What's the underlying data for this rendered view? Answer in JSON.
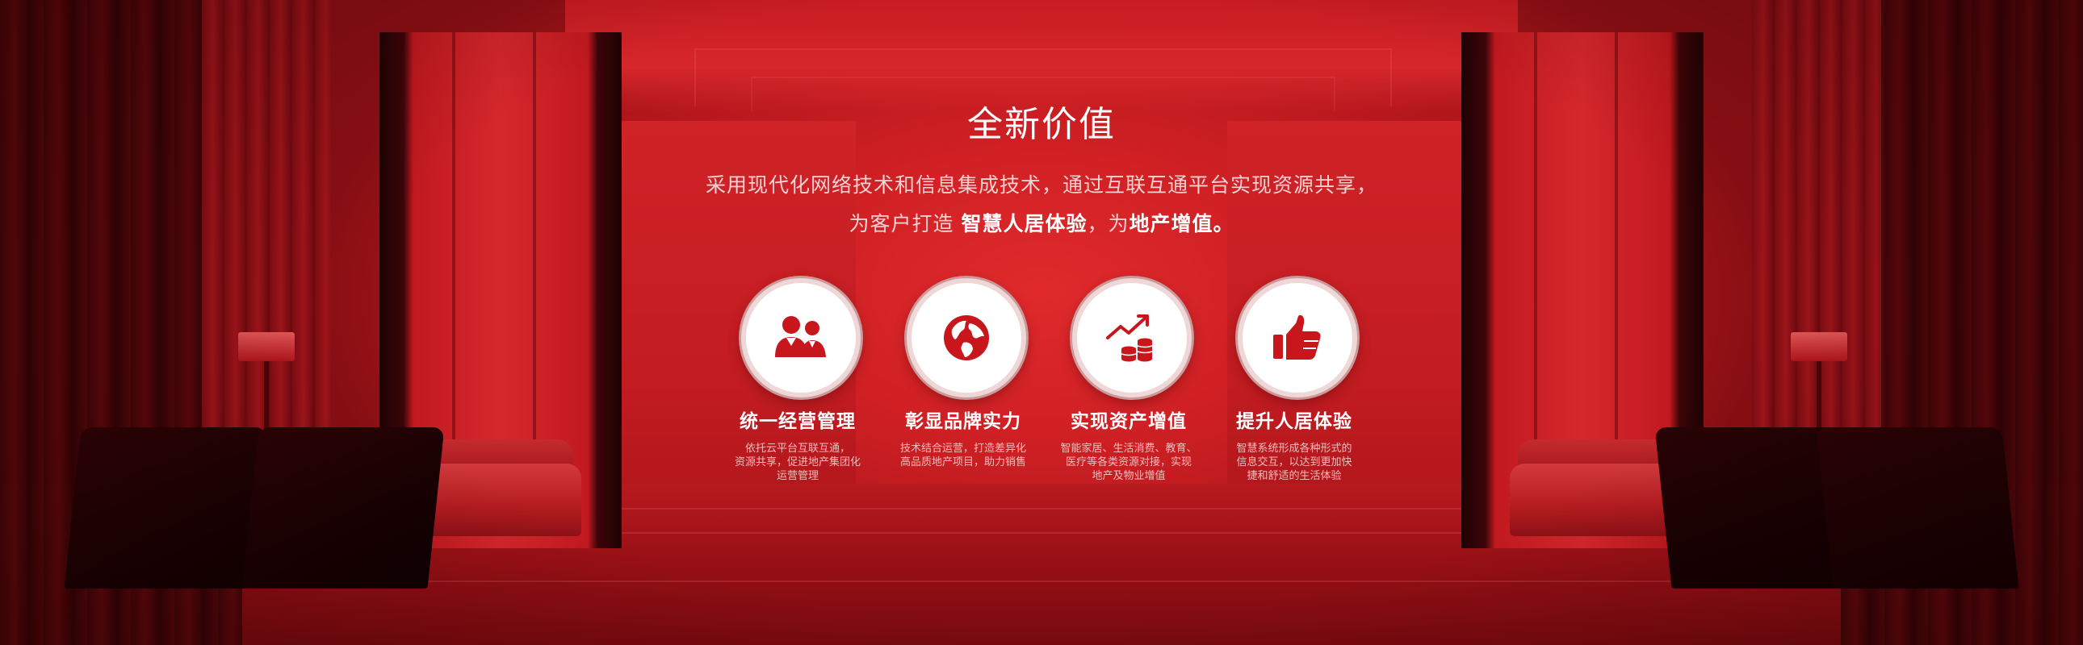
{
  "header": {
    "title": "全新价值",
    "subtitle_line1": "采用现代化网络技术和信息集成技术，通过互联互通平台实现资源共享，",
    "subtitle_line2_prefix": "为客户打造",
    "subtitle_line2_emphasis1": "智慧人居体验",
    "subtitle_line2_middle": "，为",
    "subtitle_line2_emphasis2": "地产增值。"
  },
  "features": [
    {
      "icon": "users-icon",
      "title": "统一经营管理",
      "desc_lines": [
        "依托云平台互联互通，",
        "资源共享，促进地产集团化",
        "运营管理"
      ]
    },
    {
      "icon": "globe-icon",
      "title": "彰显品牌实力",
      "desc_lines": [
        "技术结合运营，打造差异化",
        "高品质地产项目，助力销售"
      ]
    },
    {
      "icon": "coins-growth-icon",
      "title": "实现资产增值",
      "desc_lines": [
        "智能家居、生活消费、教育、",
        "医疗等各类资源对接，实现",
        "地产及物业增值"
      ]
    },
    {
      "icon": "thumbs-up-icon",
      "title": "提升人居体验",
      "desc_lines": [
        "智慧系统形成各种形式的",
        "信息交互，以达到更加快",
        "捷和舒适的生活体验"
      ]
    }
  ],
  "colors": {
    "background": "#cf2024",
    "icon_red": "#c8161d",
    "text": "#ffffff"
  }
}
